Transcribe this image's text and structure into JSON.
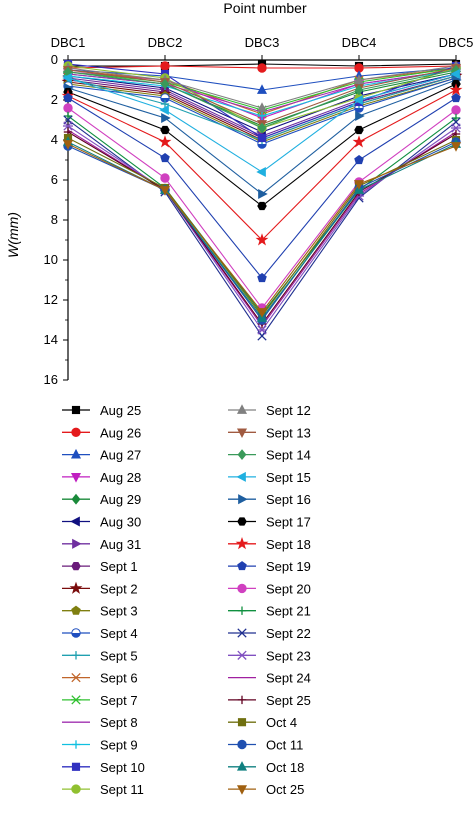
{
  "chart_data": {
    "type": "line",
    "xlabel": "Point number",
    "ylabel": "W(mm)",
    "categories": [
      "DBC1",
      "DBC2",
      "DBC3",
      "DBC4",
      "DBC5"
    ],
    "ylim": [
      0,
      16
    ],
    "y_ticks": [
      0,
      2,
      4,
      6,
      8,
      10,
      12,
      14,
      16
    ],
    "y_inverted": true,
    "x_axis_position": "top",
    "grid": false,
    "legend_placement": "bottom",
    "series": [
      {
        "name": "Aug 25",
        "values": [
          0.3,
          0.3,
          0.2,
          0.3,
          0.2
        ],
        "color": "#000000",
        "marker": "square"
      },
      {
        "name": "Aug 26",
        "values": [
          0.4,
          0.3,
          0.4,
          0.4,
          0.3
        ],
        "color": "#e41a1c",
        "marker": "circle"
      },
      {
        "name": "Aug 27",
        "values": [
          0.5,
          0.8,
          1.5,
          0.8,
          0.4
        ],
        "color": "#1f4fbf",
        "marker": "triangle-up"
      },
      {
        "name": "Aug 28",
        "values": [
          0.6,
          1.0,
          2.9,
          1.2,
          0.5
        ],
        "color": "#c01fc0",
        "marker": "triangle-down"
      },
      {
        "name": "Aug 29",
        "values": [
          0.7,
          1.2,
          3.3,
          1.6,
          0.6
        ],
        "color": "#1a8a3a",
        "marker": "diamond"
      },
      {
        "name": "Aug 30",
        "values": [
          0.8,
          1.4,
          3.6,
          1.8,
          0.7
        ],
        "color": "#101080",
        "marker": "triangle-left"
      },
      {
        "name": "Aug 31",
        "values": [
          0.9,
          1.5,
          3.8,
          2.0,
          0.7
        ],
        "color": "#7030a0",
        "marker": "triangle-right"
      },
      {
        "name": "Sept 1",
        "values": [
          1.0,
          1.6,
          3.9,
          2.1,
          0.8
        ],
        "color": "#6a1b7a",
        "marker": "hexagon"
      },
      {
        "name": "Sept 2",
        "values": [
          1.1,
          1.7,
          4.0,
          2.2,
          0.8
        ],
        "color": "#7a0c0c",
        "marker": "star"
      },
      {
        "name": "Sept 3",
        "values": [
          1.2,
          1.8,
          4.1,
          2.3,
          0.9
        ],
        "color": "#7f7f10",
        "marker": "pentagon"
      },
      {
        "name": "Sept 4",
        "values": [
          1.3,
          1.9,
          4.2,
          2.4,
          0.9
        ],
        "color": "#1f4fbf",
        "marker": "half-circle"
      },
      {
        "name": "Sept 5",
        "values": [
          0.9,
          2.2,
          4.0,
          2.2,
          0.8
        ],
        "color": "#20a0b0",
        "marker": "plus"
      },
      {
        "name": "Sept 6",
        "values": [
          0.5,
          1.0,
          2.7,
          1.0,
          0.4
        ],
        "color": "#c0652a",
        "marker": "x"
      },
      {
        "name": "Sept 7",
        "values": [
          0.6,
          1.1,
          2.5,
          1.1,
          0.4
        ],
        "color": "#30c030",
        "marker": "asterisk"
      },
      {
        "name": "Sept 8",
        "values": [
          0.7,
          1.2,
          2.6,
          1.2,
          0.5
        ],
        "color": "#a030b0",
        "marker": "none"
      },
      {
        "name": "Sept 9",
        "values": [
          0.8,
          1.3,
          2.8,
          1.3,
          0.5
        ],
        "color": "#10c0e0",
        "marker": "plus"
      },
      {
        "name": "Sept 10",
        "values": [
          0.2,
          0.7,
          3.9,
          2.1,
          0.3
        ],
        "color": "#3030c0",
        "marker": "square"
      },
      {
        "name": "Sept 11",
        "values": [
          0.3,
          0.9,
          3.4,
          1.9,
          0.4
        ],
        "color": "#90c030",
        "marker": "circle"
      },
      {
        "name": "Sept 12",
        "values": [
          0.4,
          1.0,
          2.4,
          1.0,
          0.3
        ],
        "color": "#808080",
        "marker": "triangle-up"
      },
      {
        "name": "Sept 13",
        "values": [
          0.5,
          1.1,
          3.2,
          1.4,
          0.4
        ],
        "color": "#a05a40",
        "marker": "triangle-down"
      },
      {
        "name": "Sept 14",
        "values": [
          0.6,
          1.2,
          3.4,
          1.5,
          0.5
        ],
        "color": "#3a9a5a",
        "marker": "diamond"
      },
      {
        "name": "Sept 15",
        "values": [
          0.9,
          2.5,
          5.6,
          2.0,
          0.7
        ],
        "color": "#20b0e0",
        "marker": "triangle-left"
      },
      {
        "name": "Sept 16",
        "values": [
          1.4,
          2.9,
          6.7,
          2.8,
          1.0
        ],
        "color": "#1f5fa0",
        "marker": "triangle-right"
      },
      {
        "name": "Sept 17",
        "values": [
          1.6,
          3.5,
          7.3,
          3.5,
          1.2
        ],
        "color": "#000000",
        "marker": "hexagon"
      },
      {
        "name": "Sept 18",
        "values": [
          1.8,
          4.1,
          9.0,
          4.1,
          1.5
        ],
        "color": "#e41a1c",
        "marker": "star"
      },
      {
        "name": "Sept 19",
        "values": [
          1.9,
          4.9,
          10.9,
          5.0,
          1.9
        ],
        "color": "#2040b0",
        "marker": "pentagon"
      },
      {
        "name": "Sept 20",
        "values": [
          2.4,
          5.9,
          12.4,
          6.1,
          2.5
        ],
        "color": "#d040c0",
        "marker": "circle"
      },
      {
        "name": "Sept 21",
        "values": [
          2.8,
          6.4,
          12.7,
          6.5,
          2.9
        ],
        "color": "#109040",
        "marker": "plus"
      },
      {
        "name": "Sept 22",
        "values": [
          3.0,
          6.6,
          13.8,
          6.9,
          3.1
        ],
        "color": "#203090",
        "marker": "x"
      },
      {
        "name": "Sept 23",
        "values": [
          3.3,
          6.5,
          13.5,
          6.8,
          3.4
        ],
        "color": "#8050c0",
        "marker": "asterisk"
      },
      {
        "name": "Sept 24",
        "values": [
          3.5,
          6.5,
          13.3,
          6.7,
          3.6
        ],
        "color": "#a020a0",
        "marker": "none"
      },
      {
        "name": "Sept 25",
        "values": [
          3.6,
          6.5,
          13.2,
          6.6,
          3.7
        ],
        "color": "#600020",
        "marker": "plus"
      },
      {
        "name": "Oct 4",
        "values": [
          3.9,
          6.4,
          12.8,
          6.3,
          4.0
        ],
        "color": "#707010",
        "marker": "square"
      },
      {
        "name": "Oct 11",
        "values": [
          4.3,
          6.5,
          13.0,
          6.4,
          4.1
        ],
        "color": "#2050b0",
        "marker": "circle"
      },
      {
        "name": "Oct 18",
        "values": [
          4.1,
          6.5,
          12.9,
          6.5,
          4.2
        ],
        "color": "#108080",
        "marker": "triangle-up"
      },
      {
        "name": "Oct 25",
        "values": [
          4.2,
          6.5,
          12.6,
          6.2,
          4.3
        ],
        "color": "#a06010",
        "marker": "triangle-down"
      }
    ]
  }
}
